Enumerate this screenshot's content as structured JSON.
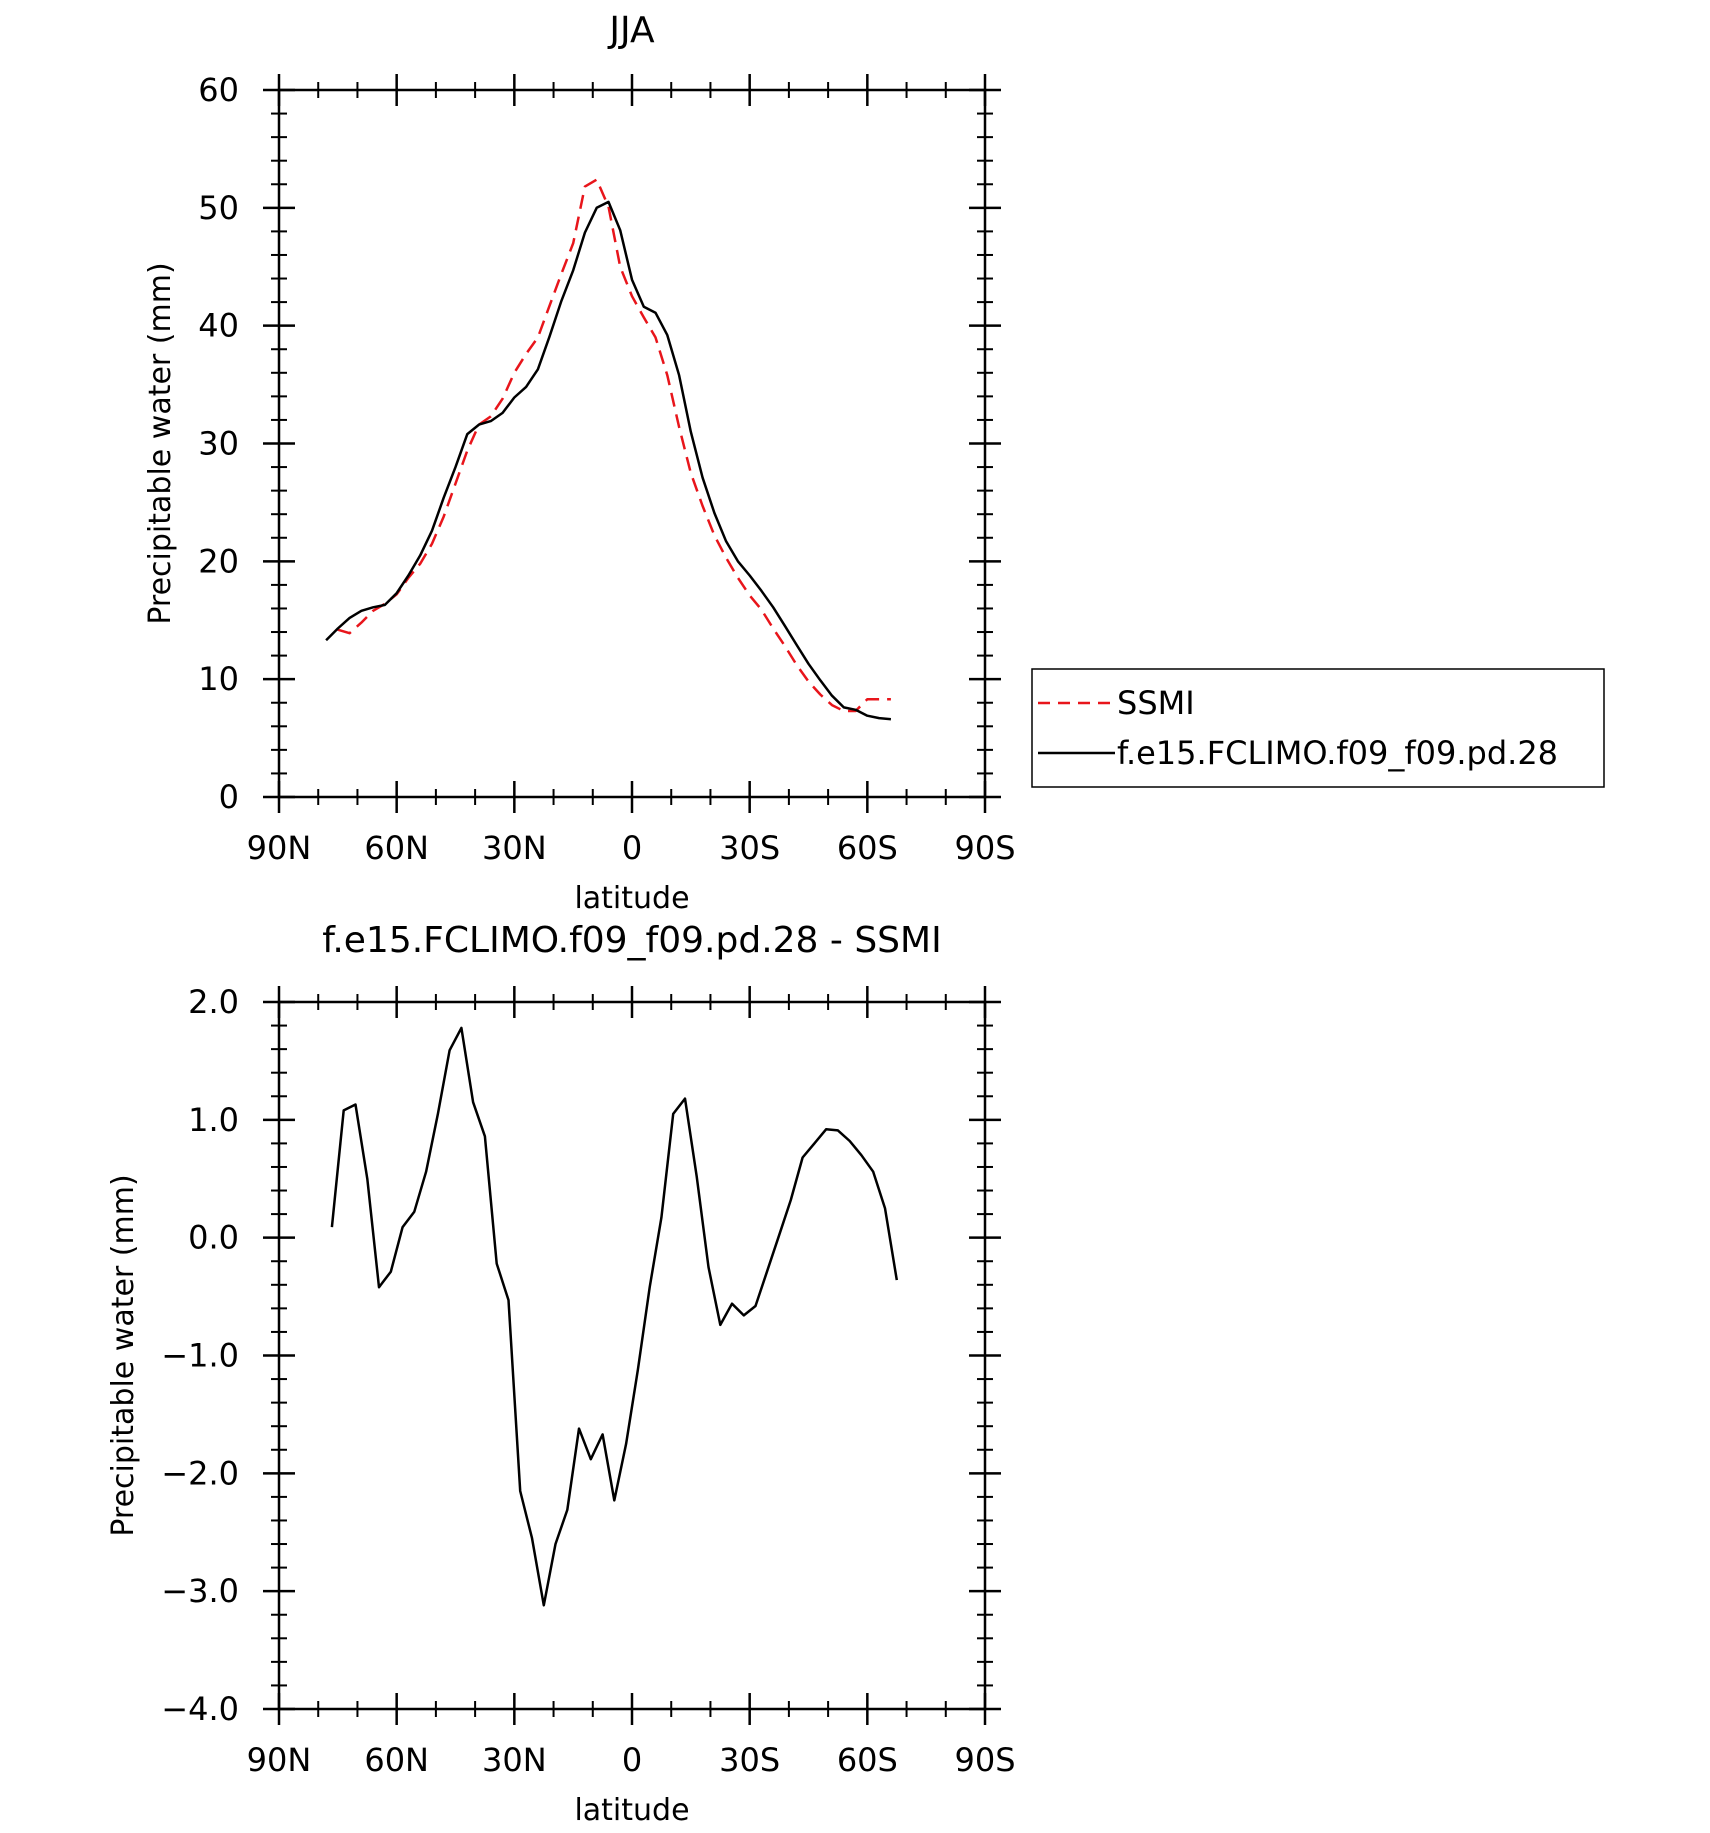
{
  "chart_data": [
    {
      "type": "line",
      "title": "JJA",
      "xlabel": "latitude",
      "ylabel": "Precipitable water (mm)",
      "xlim": [
        90,
        -90
      ],
      "ylim": [
        0,
        60
      ],
      "x_ticks": [
        90,
        60,
        30,
        0,
        -30,
        -60,
        -90
      ],
      "x_tick_labels": [
        "90N",
        "60N",
        "30N",
        "0",
        "30S",
        "60S",
        "90S"
      ],
      "y_ticks": [
        0,
        10,
        20,
        30,
        40,
        50,
        60
      ],
      "y_tick_labels": [
        "0",
        "10",
        "20",
        "30",
        "40",
        "50",
        "60"
      ],
      "legend_position": "right",
      "series": [
        {
          "name": "SSMI",
          "color": "#e8151b",
          "style": "dashed",
          "x": [
            75,
            72,
            69,
            66,
            63,
            60,
            57,
            54,
            51,
            48,
            45,
            42,
            39,
            36,
            33,
            30,
            27,
            24,
            21,
            18,
            15,
            12,
            9,
            6,
            3,
            0,
            -3,
            -6,
            -9,
            -12,
            -15,
            -18,
            -21,
            -24,
            -27,
            -30,
            -33,
            -36,
            -39,
            -42,
            -45,
            -48,
            -51,
            -54,
            -57,
            -60,
            -63,
            -66
          ],
          "values": [
            14.2,
            13.9,
            14.8,
            15.8,
            16.4,
            17.2,
            18.6,
            19.8,
            21.5,
            23.8,
            26.6,
            29.4,
            31.6,
            32.3,
            33.8,
            36.0,
            37.6,
            39.0,
            41.7,
            44.4,
            47.0,
            51.8,
            52.4,
            50.1,
            45.0,
            42.5,
            40.7,
            39.0,
            35.8,
            31.4,
            27.5,
            24.7,
            22.2,
            20.3,
            18.6,
            17.1,
            15.9,
            14.3,
            12.8,
            11.2,
            9.8,
            8.7,
            7.8,
            7.3,
            7.3,
            8.3,
            8.3,
            8.3
          ]
        },
        {
          "name": "f.e15.FCLIMO.f09_f09.pd.28",
          "color": "#000000",
          "style": "solid",
          "x": [
            78,
            75,
            72,
            69,
            66,
            63,
            60,
            57,
            54,
            51,
            48,
            45,
            42,
            39,
            36,
            33,
            30,
            27,
            24,
            21,
            18,
            15,
            12,
            9,
            6,
            3,
            0,
            -3,
            -6,
            -9,
            -12,
            -15,
            -18,
            -21,
            -24,
            -27,
            -30,
            -33,
            -36,
            -39,
            -42,
            -45,
            -48,
            -51,
            -54,
            -57,
            -60,
            -63,
            -66
          ],
          "values": [
            13.3,
            14.3,
            15.2,
            15.8,
            16.1,
            16.3,
            17.3,
            18.8,
            20.5,
            22.6,
            25.4,
            28.0,
            30.8,
            31.6,
            31.9,
            32.6,
            33.9,
            34.8,
            36.3,
            39.1,
            42.1,
            44.7,
            47.9,
            50.0,
            50.5,
            48.1,
            43.9,
            41.6,
            41.1,
            39.2,
            35.8,
            31.0,
            27.1,
            24.1,
            21.7,
            20.0,
            18.8,
            17.5,
            16.1,
            14.5,
            12.9,
            11.3,
            9.9,
            8.6,
            7.6,
            7.4,
            6.9,
            6.7,
            6.6
          ]
        }
      ]
    },
    {
      "type": "line",
      "title": "f.e15.FCLIMO.f09_f09.pd.28 - SSMI",
      "xlabel": "latitude",
      "ylabel": "Precipitable water (mm)",
      "xlim": [
        90,
        -90
      ],
      "ylim": [
        -4.0,
        2.0
      ],
      "x_ticks": [
        90,
        60,
        30,
        0,
        -30,
        -60,
        -90
      ],
      "x_tick_labels": [
        "90N",
        "60N",
        "30N",
        "0",
        "30S",
        "60S",
        "90S"
      ],
      "y_ticks": [
        2,
        1,
        0,
        -1,
        -2,
        -3,
        -4
      ],
      "y_tick_labels": [
        "2.0",
        "1.0",
        "0.0",
        "-1.0",
        "-2.0",
        "-3.0",
        "-4.0"
      ],
      "series": [
        {
          "color": "#000000",
          "style": "solid",
          "x": [
            76.5,
            73.5,
            70.5,
            67.5,
            64.5,
            61.5,
            58.5,
            55.5,
            52.5,
            49.5,
            46.5,
            43.5,
            40.5,
            37.5,
            34.5,
            31.5,
            28.5,
            25.5,
            22.5,
            19.5,
            16.5,
            13.5,
            10.5,
            7.5,
            4.5,
            1.5,
            -1.5,
            -4.5,
            -7.5,
            -10.5,
            -13.5,
            -16.5,
            -19.5,
            -22.5,
            -25.5,
            -28.5,
            -31.5,
            -34.5,
            -37.5,
            -40.5,
            -43.5,
            -46.5,
            -49.5,
            -52.5,
            -55.5,
            -58.5,
            -61.5,
            -64.5,
            -67.5
          ],
          "values": [
            0.09,
            1.08,
            1.13,
            0.5,
            -0.42,
            -0.29,
            0.09,
            0.22,
            0.56,
            1.05,
            1.59,
            1.78,
            1.15,
            0.86,
            -0.22,
            -0.53,
            -2.15,
            -2.55,
            -3.12,
            -2.6,
            -2.31,
            -1.62,
            -1.88,
            -1.67,
            -2.23,
            -1.75,
            -1.12,
            -0.42,
            0.17,
            1.05,
            1.18,
            0.52,
            -0.25,
            -0.74,
            -0.56,
            -0.66,
            -0.58,
            -0.28,
            0.02,
            0.32,
            0.68,
            0.8,
            0.92,
            0.91,
            0.82,
            0.7,
            0.56,
            0.25,
            -0.36
          ]
        }
      ]
    }
  ]
}
